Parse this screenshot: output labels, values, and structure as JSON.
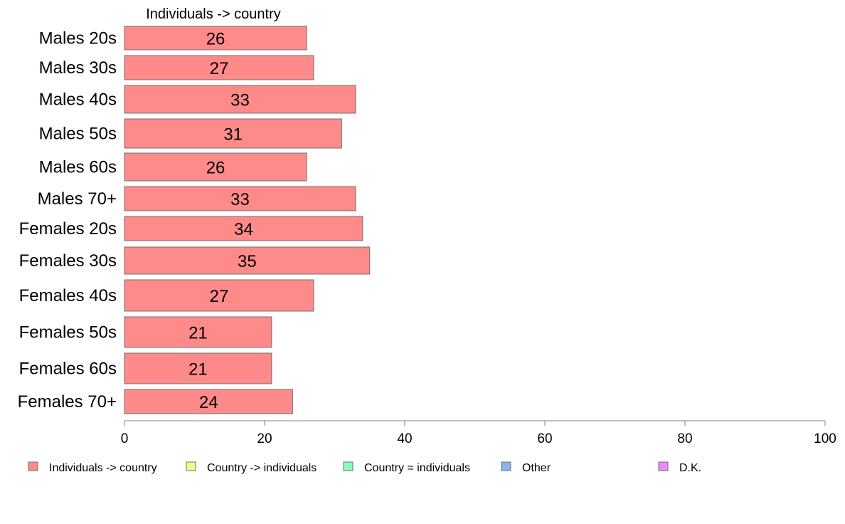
{
  "chart_data": {
    "type": "bar",
    "orientation": "horizontal",
    "stacked": true,
    "column_title": "Individuals -> country",
    "categories": [
      "Males 20s",
      "Males 30s",
      "Males 40s",
      "Males 50s",
      "Males 60s",
      "Males 70+",
      "Females 20s",
      "Females 30s",
      "Females 40s",
      "Females 50s",
      "Females 60s",
      "Females 70+"
    ],
    "series": [
      {
        "name": "Individuals -> country",
        "color": "#ff8a8a",
        "values": [
          26,
          27,
          33,
          31,
          26,
          33,
          34,
          35,
          27,
          21,
          21,
          24
        ]
      }
    ],
    "value_labels": [
      "26",
      "27",
      "33",
      "31",
      "26",
      "33",
      "34",
      "35",
      "27",
      "21",
      "21",
      "24"
    ],
    "xlim": [
      0,
      100
    ],
    "xticks": [
      0,
      20,
      40,
      60,
      80,
      100
    ],
    "legend": {
      "position": "bottom",
      "items": [
        {
          "label": "Individuals -> country",
          "color": "#ff8a8a"
        },
        {
          "label": "Country -> individuals",
          "color": "#eeff88"
        },
        {
          "label": "Country = individuals",
          "color": "#88ffbb"
        },
        {
          "label": "Other",
          "color": "#88b4ee"
        },
        {
          "label": "D.K.",
          "color": "#ee88ff"
        }
      ]
    }
  }
}
